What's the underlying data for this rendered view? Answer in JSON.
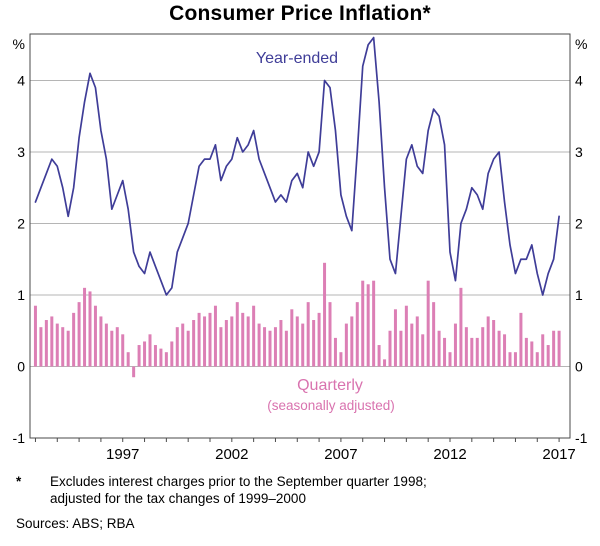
{
  "title": "Consumer Price Inflation*",
  "annotations": {
    "line_label": "Year-ended",
    "bar_label": "Quarterly",
    "bar_sublabel": "(seasonally adjusted)"
  },
  "footnote": {
    "marker": "*",
    "line1": "Excludes interest charges prior to the September quarter 1998;",
    "line2": "adjusted for the tax changes of 1999–2000",
    "sources": "Sources: ABS; RBA"
  },
  "colors": {
    "line": "#3f3d98",
    "bar": "#dc7fb5",
    "grid": "#b5b5b5",
    "frame": "#4a4a4a",
    "text": "#000000"
  },
  "chart_data": {
    "type": "combo",
    "title": "Consumer Price Inflation*",
    "y_unit": "%",
    "ylim": [
      -1,
      4.65
    ],
    "y_ticks": [
      -1,
      0,
      1,
      2,
      3,
      4
    ],
    "grid": true,
    "x_start": 1993.0,
    "x_step": 0.25,
    "x_domain": [
      1992.75,
      2017.5
    ],
    "x_tick_years": [
      1993,
      1994,
      1995,
      1996,
      1997,
      1998,
      1999,
      2000,
      2001,
      2002,
      2003,
      2004,
      2005,
      2006,
      2007,
      2008,
      2009,
      2010,
      2011,
      2012,
      2013,
      2014,
      2015,
      2016,
      2017
    ],
    "x_tick_years_labeled": [
      1997,
      2002,
      2007,
      2012,
      2017
    ],
    "series": [
      {
        "name": "Year-ended",
        "type": "line",
        "color": "#3f3d98",
        "values": [
          2.3,
          2.5,
          2.7,
          2.9,
          2.8,
          2.5,
          2.1,
          2.5,
          3.2,
          3.7,
          4.1,
          3.9,
          3.3,
          2.9,
          2.2,
          2.4,
          2.6,
          2.2,
          1.6,
          1.4,
          1.3,
          1.6,
          1.4,
          1.2,
          1.0,
          1.1,
          1.6,
          1.8,
          2.0,
          2.4,
          2.8,
          2.9,
          2.9,
          3.1,
          2.6,
          2.8,
          2.9,
          3.2,
          3.0,
          3.1,
          3.3,
          2.9,
          2.7,
          2.5,
          2.3,
          2.4,
          2.3,
          2.6,
          2.7,
          2.5,
          3.0,
          2.8,
          3.0,
          4.0,
          3.9,
          3.3,
          2.4,
          2.1,
          1.9,
          3.0,
          4.2,
          4.5,
          4.6,
          3.7,
          2.5,
          1.5,
          1.3,
          2.1,
          2.9,
          3.1,
          2.8,
          2.7,
          3.3,
          3.6,
          3.5,
          3.1,
          1.6,
          1.2,
          2.0,
          2.2,
          2.5,
          2.4,
          2.2,
          2.7,
          2.9,
          3.0,
          2.3,
          1.7,
          1.3,
          1.5,
          1.5,
          1.7,
          1.3,
          1.0,
          1.3,
          1.5,
          2.1
        ]
      },
      {
        "name": "Quarterly (seasonally adjusted)",
        "type": "bar",
        "color": "#dc7fb5",
        "values": [
          0.85,
          0.55,
          0.65,
          0.7,
          0.6,
          0.55,
          0.5,
          0.75,
          0.9,
          1.1,
          1.05,
          0.85,
          0.7,
          0.6,
          0.5,
          0.55,
          0.45,
          0.2,
          -0.15,
          0.3,
          0.35,
          0.45,
          0.3,
          0.25,
          0.2,
          0.35,
          0.55,
          0.6,
          0.5,
          0.65,
          0.75,
          0.7,
          0.75,
          0.85,
          0.55,
          0.65,
          0.7,
          0.9,
          0.75,
          0.7,
          0.85,
          0.6,
          0.55,
          0.5,
          0.55,
          0.65,
          0.5,
          0.8,
          0.7,
          0.6,
          0.9,
          0.65,
          0.75,
          1.45,
          0.9,
          0.4,
          0.2,
          0.6,
          0.7,
          0.9,
          1.2,
          1.15,
          1.2,
          0.3,
          0.1,
          0.5,
          0.8,
          0.5,
          0.85,
          0.6,
          0.7,
          0.45,
          1.2,
          0.9,
          0.5,
          0.4,
          0.2,
          0.6,
          1.1,
          0.55,
          0.4,
          0.4,
          0.55,
          0.7,
          0.65,
          0.5,
          0.45,
          0.2,
          0.2,
          0.75,
          0.4,
          0.35,
          0.2,
          0.45,
          0.3,
          0.5,
          0.5
        ]
      }
    ]
  }
}
